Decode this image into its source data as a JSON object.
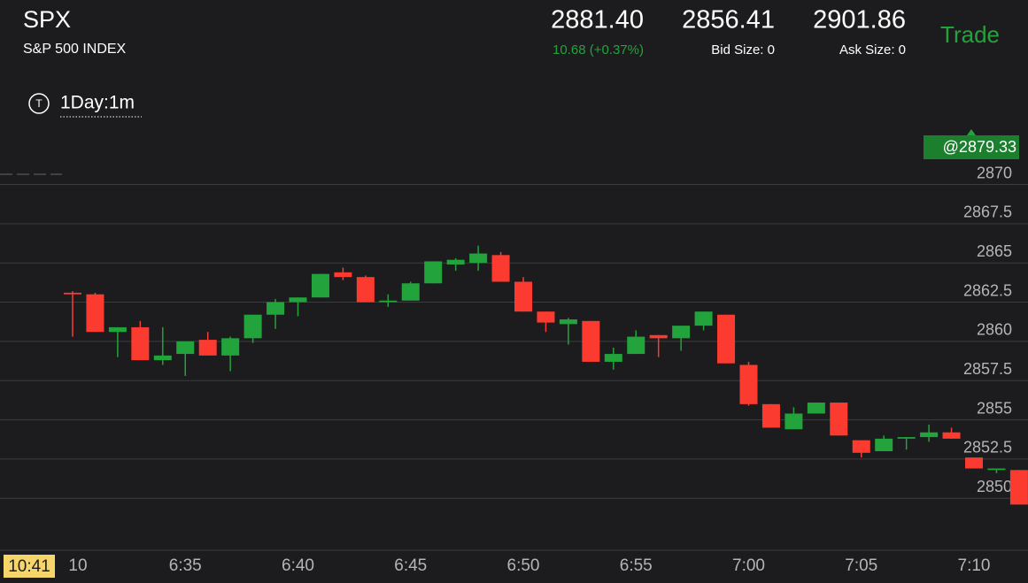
{
  "header": {
    "symbol": "SPX",
    "name": "S&P 500 INDEX",
    "last": "2881.40",
    "change": "10.68 (+0.37%)",
    "bid": "2856.41",
    "bid_size": "Bid Size: 0",
    "ask": "2901.86",
    "ask_size": "Ask Size: 0",
    "trade": "Trade"
  },
  "toolbar": {
    "icon": "T",
    "interval": "1Day:1m"
  },
  "price_tag": "@2879.33",
  "cursor_time": "10:41",
  "chart_data": {
    "type": "candlestick",
    "categories": [
      "10",
      null,
      null,
      null,
      null,
      "6:35",
      null,
      null,
      null,
      null,
      "6:40",
      null,
      null,
      null,
      null,
      "6:45",
      null,
      null,
      null,
      null,
      "6:50",
      null,
      null,
      null,
      null,
      "6:55",
      null,
      null,
      null,
      null,
      "7:00",
      null,
      null,
      null,
      null,
      "7:05",
      null,
      null,
      null,
      null,
      "7:10",
      null,
      null
    ],
    "open": [
      2863.1,
      2863.0,
      2860.6,
      2860.9,
      2858.8,
      2859.2,
      2860.1,
      2859.1,
      2860.2,
      2861.7,
      2862.5,
      2862.8,
      2864.4,
      2864.1,
      2862.5,
      2862.6,
      2863.7,
      2864.9,
      2865.0,
      2865.5,
      2863.8,
      2861.9,
      2861.1,
      2861.3,
      2858.7,
      2859.2,
      2860.4,
      2860.2,
      2861.0,
      2861.7,
      2858.5,
      2856.0,
      2854.4,
      2855.4,
      2856.1,
      2853.7,
      2853.0,
      2853.8,
      2853.9,
      2854.2,
      2852.6,
      2851.8,
      2851.8
    ],
    "high": [
      2863.2,
      2863.1,
      2860.9,
      2861.3,
      2860.9,
      2860.0,
      2860.6,
      2860.3,
      2861.7,
      2862.7,
      2862.8,
      2864.3,
      2864.7,
      2864.2,
      2863.0,
      2863.8,
      2865.1,
      2865.3,
      2866.1,
      2865.7,
      2864.1,
      2861.9,
      2861.5,
      2861.3,
      2859.6,
      2860.7,
      2860.4,
      2861.0,
      2861.9,
      2861.7,
      2858.7,
      2856.0,
      2855.8,
      2856.1,
      2856.1,
      2853.7,
      2854.0,
      2853.9,
      2854.7,
      2854.5,
      2852.6,
      2851.9,
      2851.8
    ],
    "low": [
      2860.3,
      2860.6,
      2859.0,
      2858.8,
      2858.5,
      2857.8,
      2859.1,
      2858.1,
      2859.9,
      2860.8,
      2861.6,
      2862.8,
      2863.9,
      2862.5,
      2862.2,
      2862.6,
      2863.7,
      2864.5,
      2864.5,
      2863.8,
      2861.9,
      2860.6,
      2859.8,
      2858.7,
      2858.2,
      2859.2,
      2859.0,
      2859.4,
      2860.7,
      2858.6,
      2855.9,
      2854.5,
      2854.4,
      2855.4,
      2854.0,
      2852.6,
      2853.0,
      2853.1,
      2853.6,
      2853.8,
      2851.9,
      2851.6,
      2849.6
    ],
    "close": [
      2863.0,
      2860.6,
      2860.9,
      2858.8,
      2859.1,
      2860.0,
      2859.1,
      2860.2,
      2861.7,
      2862.5,
      2862.8,
      2864.3,
      2864.1,
      2862.5,
      2862.6,
      2863.7,
      2865.1,
      2865.2,
      2865.6,
      2863.8,
      2861.9,
      2861.2,
      2861.4,
      2858.7,
      2859.2,
      2860.3,
      2860.2,
      2861.0,
      2861.9,
      2858.6,
      2856.0,
      2854.5,
      2855.4,
      2856.1,
      2854.0,
      2852.9,
      2853.8,
      2853.9,
      2854.2,
      2853.8,
      2851.9,
      2851.9,
      2849.6
    ],
    "up_color": "#23a33b",
    "down_color": "#fc3b30",
    "ylim": [
      2846.8,
      2873.3
    ],
    "yticks": [
      2850,
      2852.5,
      2855,
      2857.5,
      2860,
      2862.5,
      2865,
      2867.5,
      2870
    ],
    "grid": true
  }
}
